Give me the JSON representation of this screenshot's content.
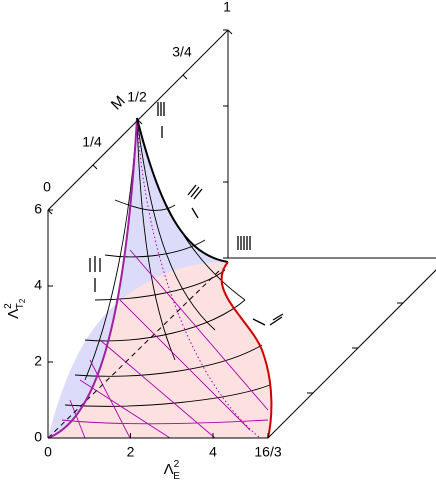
{
  "chart_data": {
    "type": "surface3d",
    "x_label": {
      "base": "Λ",
      "sup": "2",
      "sub": "E"
    },
    "y_label": {
      "base": "Λ",
      "sup": "2",
      "sub": "T",
      "subsub": "2"
    },
    "z_label": "M",
    "xlim": [
      0,
      5.333
    ],
    "xticks": [
      0,
      2,
      4,
      {
        "value": 5.333,
        "label": "16/3"
      }
    ],
    "ylim": [
      0,
      6
    ],
    "yticks": [
      0,
      2,
      4,
      6
    ],
    "zlim": [
      0,
      1
    ],
    "zticks": [
      0,
      {
        "value": 0.25,
        "label": "1/4"
      },
      {
        "value": 0.5,
        "label": "1/2"
      },
      {
        "value": 0.75,
        "label": "3/4"
      },
      1
    ]
  }
}
